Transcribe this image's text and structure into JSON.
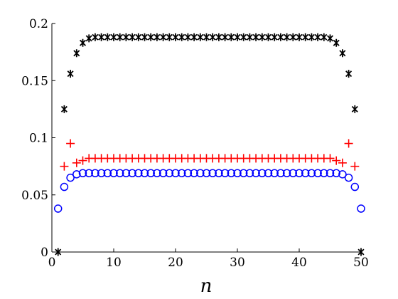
{
  "chart_data": {
    "type": "scatter",
    "title": "",
    "xlabel": "n",
    "ylabel": "",
    "xlim": [
      0,
      50
    ],
    "ylim": [
      0,
      0.2
    ],
    "xticks": [
      0,
      10,
      20,
      30,
      40,
      50
    ],
    "xtick_labels": [
      "0",
      "10",
      "20",
      "30",
      "40",
      "50"
    ],
    "yticks": [
      0,
      0.05,
      0.1,
      0.15,
      0.2
    ],
    "ytick_labels": [
      "0",
      "0.05",
      "0.1",
      "0.15",
      "0.2"
    ],
    "grid": false,
    "x": [
      1,
      2,
      3,
      4,
      5,
      6,
      7,
      8,
      9,
      10,
      11,
      12,
      13,
      14,
      15,
      16,
      17,
      18,
      19,
      20,
      21,
      22,
      23,
      24,
      25,
      26,
      27,
      28,
      29,
      30,
      31,
      32,
      33,
      34,
      35,
      36,
      37,
      38,
      39,
      40,
      41,
      42,
      43,
      44,
      45,
      46,
      47,
      48,
      49,
      50
    ],
    "series": [
      {
        "marker": "asterisk",
        "color": "#000000",
        "values": [
          0,
          0.125,
          0.156,
          0.174,
          0.183,
          0.187,
          0.188,
          0.188,
          0.188,
          0.188,
          0.188,
          0.188,
          0.188,
          0.188,
          0.188,
          0.188,
          0.188,
          0.188,
          0.188,
          0.188,
          0.188,
          0.188,
          0.188,
          0.188,
          0.188,
          0.188,
          0.188,
          0.188,
          0.188,
          0.188,
          0.188,
          0.188,
          0.188,
          0.188,
          0.188,
          0.188,
          0.188,
          0.188,
          0.188,
          0.188,
          0.188,
          0.188,
          0.188,
          0.188,
          0.187,
          0.183,
          0.174,
          0.156,
          0.125,
          0
        ]
      },
      {
        "marker": "plus",
        "color": "#ff0000",
        "values": [
          null,
          0.075,
          0.095,
          0.078,
          0.08,
          0.082,
          0.082,
          0.082,
          0.082,
          0.082,
          0.082,
          0.082,
          0.082,
          0.082,
          0.082,
          0.082,
          0.082,
          0.082,
          0.082,
          0.082,
          0.082,
          0.082,
          0.082,
          0.082,
          0.082,
          0.082,
          0.082,
          0.082,
          0.082,
          0.082,
          0.082,
          0.082,
          0.082,
          0.082,
          0.082,
          0.082,
          0.082,
          0.082,
          0.082,
          0.082,
          0.082,
          0.082,
          0.082,
          0.082,
          0.082,
          0.08,
          0.078,
          0.095,
          0.075,
          null
        ]
      },
      {
        "marker": "circle",
        "color": "#0000ff",
        "values": [
          0.038,
          0.057,
          0.065,
          0.068,
          0.069,
          0.069,
          0.069,
          0.069,
          0.069,
          0.069,
          0.069,
          0.069,
          0.069,
          0.069,
          0.069,
          0.069,
          0.069,
          0.069,
          0.069,
          0.069,
          0.069,
          0.069,
          0.069,
          0.069,
          0.069,
          0.069,
          0.069,
          0.069,
          0.069,
          0.069,
          0.069,
          0.069,
          0.069,
          0.069,
          0.069,
          0.069,
          0.069,
          0.069,
          0.069,
          0.069,
          0.069,
          0.069,
          0.069,
          0.069,
          0.069,
          0.069,
          0.068,
          0.065,
          0.057,
          0.038
        ]
      }
    ]
  }
}
